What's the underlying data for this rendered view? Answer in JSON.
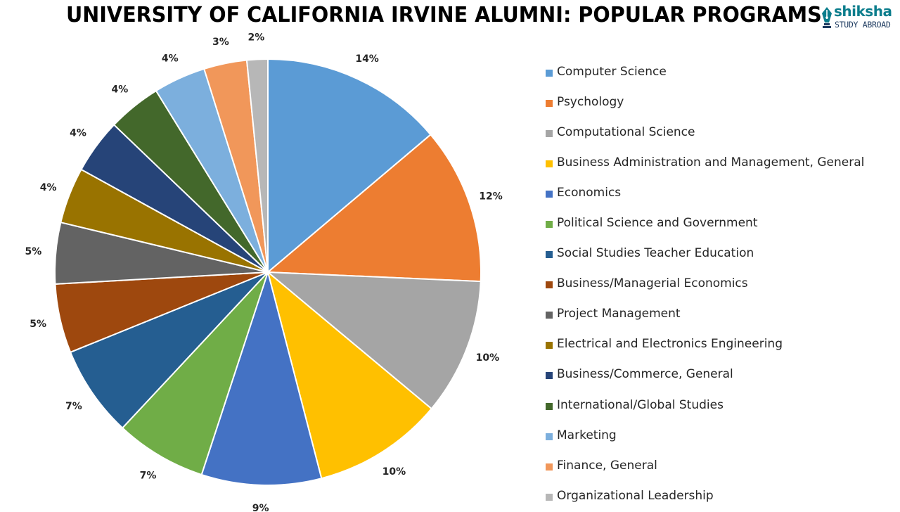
{
  "chart_data": {
    "type": "pie",
    "title": "UNIVERSITY OF CALIFORNIA IRVINE ALUMNI: POPULAR PROGRAMS",
    "legend_position": "right",
    "slices": [
      {
        "label": "Computer Science",
        "value": 14,
        "value_label": "14%",
        "color": "#5b9bd5"
      },
      {
        "label": "Psychology",
        "value": 12,
        "value_label": "12%",
        "color": "#ed7d31"
      },
      {
        "label": "Computational Science",
        "value": 10.5,
        "value_label": "10%",
        "color": "#a5a5a5"
      },
      {
        "label": "Business Administration and Management, General",
        "value": 10,
        "value_label": "10%",
        "color": "#ffc000"
      },
      {
        "label": "Economics",
        "value": 9.2,
        "value_label": "9%",
        "color": "#4472c4"
      },
      {
        "label": "Political Science and Government",
        "value": 7,
        "value_label": "7%",
        "color": "#70ad47"
      },
      {
        "label": "Social Studies Teacher Education",
        "value": 7,
        "value_label": "7%",
        "color": "#255e91"
      },
      {
        "label": "Business/Managerial Economics",
        "value": 5.3,
        "value_label": "5%",
        "color": "#9e480e"
      },
      {
        "label": "Project Management",
        "value": 4.7,
        "value_label": "5%",
        "color": "#636363"
      },
      {
        "label": "Electrical and Electronics Engineering",
        "value": 4.3,
        "value_label": "4%",
        "color": "#997300"
      },
      {
        "label": "Business/Commerce, General",
        "value": 4.2,
        "value_label": "4%",
        "color": "#264478"
      },
      {
        "label": "International/Global Studies",
        "value": 4.1,
        "value_label": "4%",
        "color": "#43682b"
      },
      {
        "label": "Marketing",
        "value": 4,
        "value_label": "4%",
        "color": "#7cafdd"
      },
      {
        "label": "Finance, General",
        "value": 3.3,
        "value_label": "3%",
        "color": "#f1975a"
      },
      {
        "label": "Organizational Leadership",
        "value": 1.6,
        "value_label": "2%",
        "color": "#b7b7b7"
      }
    ]
  },
  "brand": {
    "name": "shiksha",
    "tagline": "STUDY ABROAD",
    "color": "#0b7d8c",
    "icon": "pen-nib-icon"
  }
}
